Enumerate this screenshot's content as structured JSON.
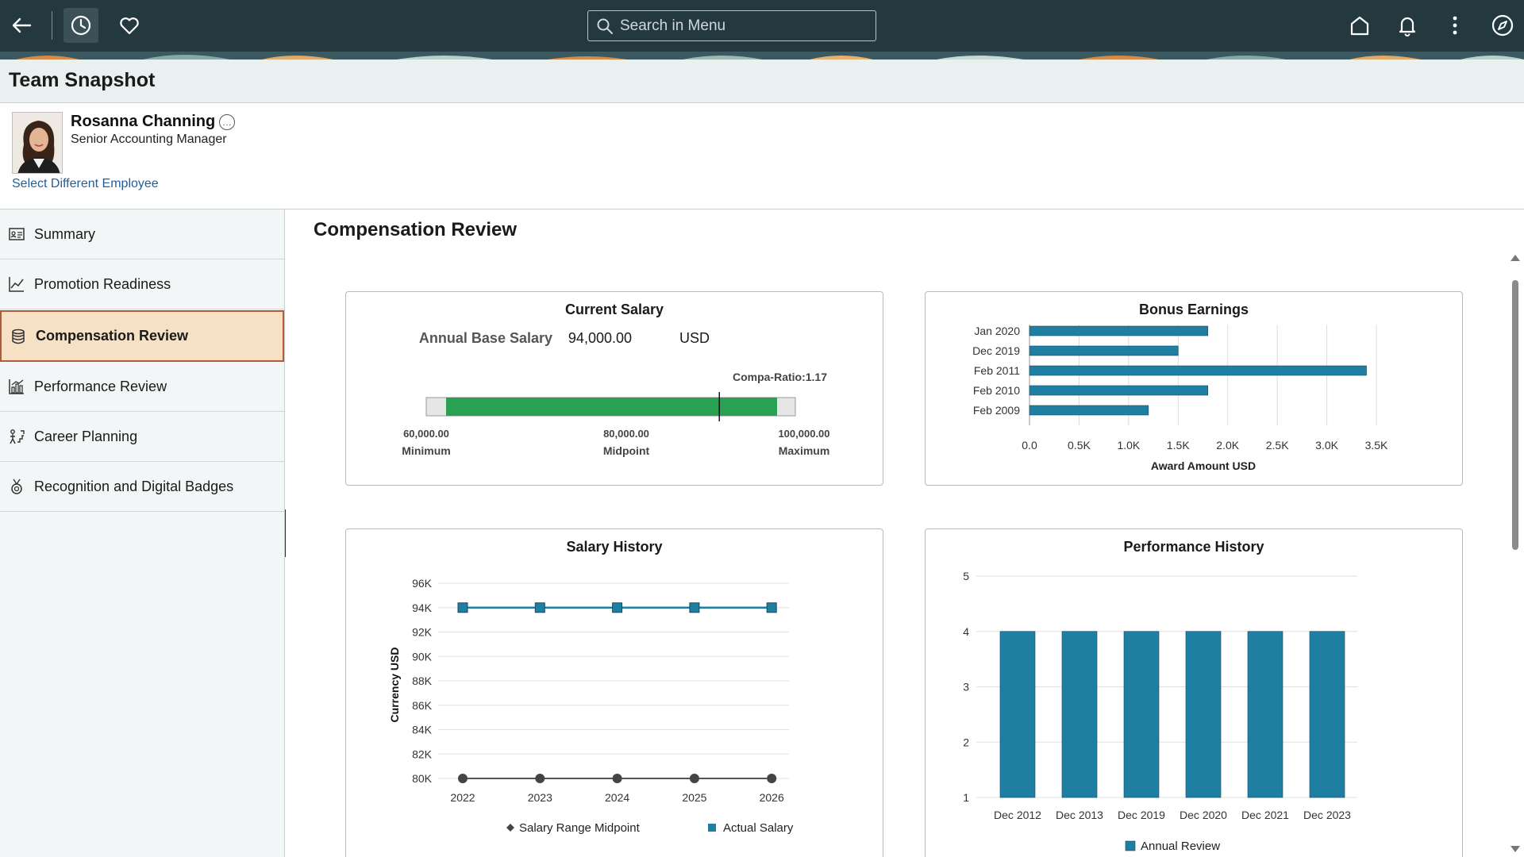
{
  "topbar": {
    "search_placeholder": "Search in Menu",
    "icons": [
      "back-arrow-icon",
      "recent-history-icon",
      "favorites-heart-icon",
      "search-icon",
      "home-icon",
      "notifications-bell-icon",
      "more-actions-icon",
      "navigator-compass-icon"
    ]
  },
  "page": {
    "title": "Team Snapshot"
  },
  "employee": {
    "name": "Rosanna Channing",
    "title": "Senior Accounting Manager",
    "more_icon": "…",
    "select_link": "Select Different Employee"
  },
  "sidebar": {
    "items": [
      {
        "label": "Summary",
        "icon": "summary-card-icon",
        "active": false
      },
      {
        "label": "Promotion Readiness",
        "icon": "line-chart-icon",
        "active": false
      },
      {
        "label": "Compensation Review",
        "icon": "coins-stack-icon",
        "active": true
      },
      {
        "label": "Performance Review",
        "icon": "bar-chart-icon",
        "active": false
      },
      {
        "label": "Career Planning",
        "icon": "career-path-icon",
        "active": false
      },
      {
        "label": "Recognition and Digital Badges",
        "icon": "badge-medal-icon",
        "active": false
      }
    ]
  },
  "main": {
    "section_title": "Compensation Review",
    "current_salary": {
      "title": "Current Salary",
      "label": "Annual Base Salary",
      "amount": "94,000.00",
      "currency": "USD",
      "compa_ratio": "Compa-Ratio:1.17",
      "min_value": "60,000.00",
      "min_label": "Minimum",
      "mid_value": "80,000.00",
      "mid_label": "Midpoint",
      "max_value": "100,000.00",
      "max_label": "Maximum",
      "range": [
        60000,
        100000
      ],
      "salary": 94000
    },
    "bonus_earnings": {
      "title": "Bonus Earnings"
    },
    "salary_history": {
      "title": "Salary History"
    },
    "performance_history": {
      "title": "Performance History"
    }
  },
  "colors": {
    "topbar": "#24393f",
    "accent_blue": "#1f7fa3",
    "salary_green": "#2aa052",
    "active_nav_bg": "#f6e1c4",
    "active_nav_border": "#b25b35",
    "midpoint_gray": "#444444"
  },
  "chart_data": [
    {
      "type": "bar",
      "orientation": "horizontal",
      "title": "Bonus Earnings",
      "categories": [
        "Jan 2020",
        "Dec 2019",
        "Feb 2011",
        "Feb 2010",
        "Feb 2009"
      ],
      "values": [
        1800,
        1500,
        3400,
        1800,
        1200
      ],
      "xlabel": "Award Amount USD",
      "ylabel": "",
      "xlim": [
        0,
        3500
      ],
      "xticks": [
        "0.0",
        "0.5K",
        "1.0K",
        "1.5K",
        "2.0K",
        "2.5K",
        "3.0K",
        "3.5K"
      ],
      "grid": true
    },
    {
      "type": "line",
      "title": "Salary History",
      "x": [
        "2022",
        "2023",
        "2024",
        "2025",
        "2026"
      ],
      "series": [
        {
          "name": "Salary Range Midpoint",
          "values": [
            80000,
            80000,
            80000,
            80000,
            80000
          ]
        },
        {
          "name": "Actual Salary",
          "values": [
            94000,
            94000,
            94000,
            94000,
            94000
          ]
        }
      ],
      "ylabel": "Currency USD",
      "ylim": [
        80000,
        96000
      ],
      "yticks": [
        "80K",
        "82K",
        "84K",
        "86K",
        "88K",
        "90K",
        "92K",
        "94K",
        "96K"
      ],
      "legend": "bottom",
      "grid": true
    },
    {
      "type": "bar",
      "title": "Performance History",
      "categories": [
        "Dec 2012",
        "Dec 2013",
        "Dec 2019",
        "Dec 2020",
        "Dec 2021",
        "Dec 2023"
      ],
      "series": [
        {
          "name": "Annual Review",
          "values": [
            4,
            4,
            4,
            4,
            4,
            4
          ]
        }
      ],
      "ylim": [
        1,
        5
      ],
      "yticks": [
        "1",
        "2",
        "3",
        "4",
        "5"
      ],
      "legend": "bottom",
      "grid": true
    }
  ]
}
